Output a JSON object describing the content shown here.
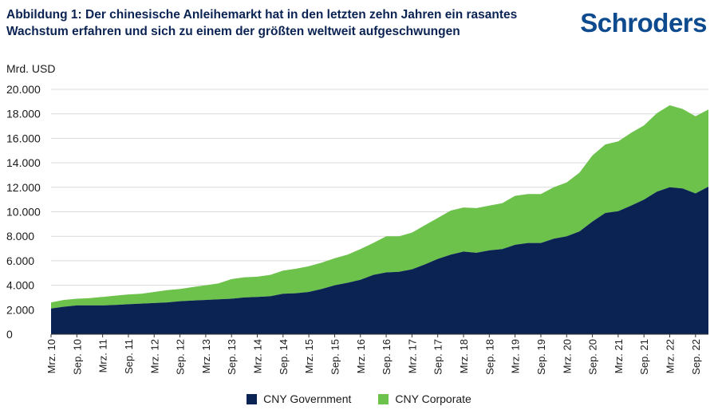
{
  "header": {
    "title": "Abbildung 1: Der chinesische Anleihemarkt hat in den letzten zehn Jahren ein rasantes Wachstum erfahren und sich zu einem der größten weltweit aufgeschwungen",
    "logo": "Schroders"
  },
  "colors": {
    "government": "#0b2353",
    "corporate": "#6cc24a",
    "grid": "#d9d9d9",
    "title": "#0b2353",
    "logo": "#0e4a8e"
  },
  "chart_data": {
    "type": "area",
    "stacked": true,
    "ylabel": "Mrd. USD",
    "ylim": [
      0,
      20000
    ],
    "y_ticks": [
      "0",
      "2.000",
      "4.000",
      "6.000",
      "8.000",
      "10.000",
      "12.000",
      "14.000",
      "16.000",
      "18.000",
      "20.000"
    ],
    "x_tick_labels": [
      "Mrz. 10",
      "Sep. 10",
      "Mrz. 11",
      "Sep. 11",
      "Mrz. 12",
      "Sep. 12",
      "Mrz. 13",
      "Sep. 13",
      "Mrz. 14",
      "Sep. 14",
      "Mrz. 15",
      "Sep. 15",
      "Mrz. 16",
      "Sep. 16",
      "Mrz. 17",
      "Sep. 17",
      "Mrz. 18",
      "Sep. 18",
      "Mrz. 19",
      "Sep. 19",
      "Mrz. 20",
      "Sep. 20",
      "Mrz. 21",
      "Sep. 21",
      "Mrz. 22",
      "Sep. 22"
    ],
    "x_periods": [
      "Mrz. 10",
      "Jun. 10",
      "Sep. 10",
      "Dez. 10",
      "Mrz. 11",
      "Jun. 11",
      "Sep. 11",
      "Dez. 11",
      "Mrz. 12",
      "Jun. 12",
      "Sep. 12",
      "Dez. 12",
      "Mrz. 13",
      "Jun. 13",
      "Sep. 13",
      "Dez. 13",
      "Mrz. 14",
      "Jun. 14",
      "Sep. 14",
      "Dez. 14",
      "Mrz. 15",
      "Jun. 15",
      "Sep. 15",
      "Dez. 15",
      "Mrz. 16",
      "Jun. 16",
      "Sep. 16",
      "Dez. 16",
      "Mrz. 17",
      "Jun. 17",
      "Sep. 17",
      "Dez. 17",
      "Mrz. 18",
      "Jun. 18",
      "Sep. 18",
      "Dez. 18",
      "Mrz. 19",
      "Jun. 19",
      "Sep. 19",
      "Dez. 19",
      "Mrz. 20",
      "Jun. 20",
      "Sep. 20",
      "Dez. 20",
      "Mrz. 21",
      "Jun. 21",
      "Sep. 21",
      "Dez. 21",
      "Mrz. 22",
      "Jun. 22",
      "Sep. 22",
      "Dez. 22"
    ],
    "series": [
      {
        "name": "CNY Government",
        "values": [
          2100,
          2250,
          2350,
          2350,
          2350,
          2400,
          2450,
          2500,
          2550,
          2600,
          2700,
          2750,
          2800,
          2850,
          2900,
          3000,
          3050,
          3100,
          3300,
          3350,
          3450,
          3700,
          4000,
          4200,
          4450,
          4850,
          5050,
          5100,
          5300,
          5700,
          6150,
          6500,
          6750,
          6650,
          6850,
          6950,
          7300,
          7450,
          7450,
          7800,
          8000,
          8400,
          9200,
          9900,
          10050,
          10500,
          11000,
          11650,
          12000,
          11900,
          11500,
          12050
        ]
      },
      {
        "name": "CNY Corporate",
        "values": [
          500,
          550,
          550,
          600,
          700,
          750,
          800,
          800,
          900,
          1000,
          1000,
          1100,
          1200,
          1300,
          1600,
          1650,
          1650,
          1750,
          1900,
          2000,
          2100,
          2150,
          2200,
          2300,
          2500,
          2600,
          2950,
          2900,
          3000,
          3200,
          3350,
          3600,
          3600,
          3650,
          3650,
          3750,
          4000,
          4000,
          4000,
          4200,
          4400,
          4800,
          5400,
          5600,
          5700,
          5950,
          6050,
          6400,
          6700,
          6500,
          6300,
          6300
        ]
      }
    ]
  },
  "legend": {
    "government_label": "CNY Government",
    "corporate_label": "CNY Corporate"
  }
}
